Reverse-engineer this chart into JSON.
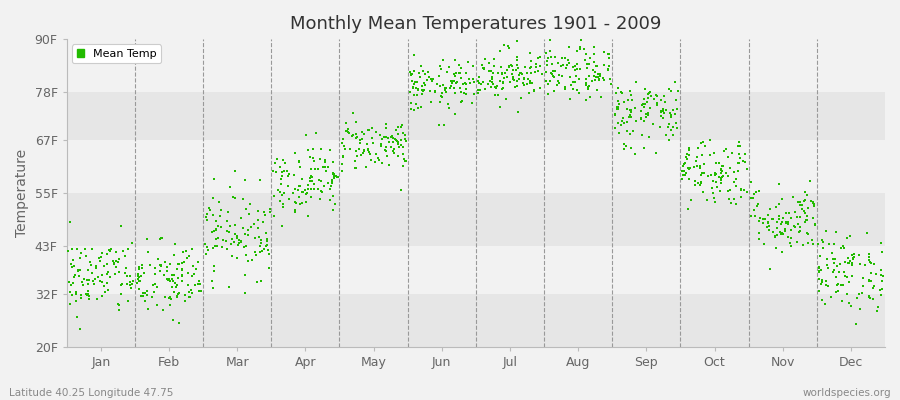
{
  "title": "Monthly Mean Temperatures 1901 - 2009",
  "ylabel": "Temperature",
  "ytick_labels": [
    "20F",
    "32F",
    "43F",
    "55F",
    "67F",
    "78F",
    "90F"
  ],
  "ytick_values": [
    20,
    32,
    43,
    55,
    67,
    78,
    90
  ],
  "ylim": [
    20,
    90
  ],
  "xlim": [
    0,
    12
  ],
  "months": [
    "Jan",
    "Feb",
    "Mar",
    "Apr",
    "May",
    "Jun",
    "Jul",
    "Aug",
    "Sep",
    "Oct",
    "Nov",
    "Dec"
  ],
  "dot_color": "#22bb00",
  "bg_color": "#f2f2f2",
  "band_colors": [
    "#e6e6e6",
    "#f2f2f2"
  ],
  "legend_label": "Mean Temp",
  "subtitle_left": "Latitude 40.25 Longitude 47.75",
  "subtitle_right": "worldspecies.org",
  "monthly_params": {
    "Jan": {
      "mean": 36,
      "std": 4.5
    },
    "Feb": {
      "mean": 35,
      "std": 4.5
    },
    "Mar": {
      "mean": 46,
      "std": 5
    },
    "Apr": {
      "mean": 58,
      "std": 4
    },
    "May": {
      "mean": 66,
      "std": 3
    },
    "Jun": {
      "mean": 79,
      "std": 3
    },
    "Jul": {
      "mean": 82,
      "std": 3
    },
    "Aug": {
      "mean": 82,
      "std": 3
    },
    "Sep": {
      "mean": 73,
      "std": 4
    },
    "Oct": {
      "mean": 60,
      "std": 4
    },
    "Nov": {
      "mean": 49,
      "std": 4
    },
    "Dec": {
      "mean": 37,
      "std": 4.5
    }
  },
  "num_years": 109,
  "random_seed": 42,
  "dot_size": 3
}
